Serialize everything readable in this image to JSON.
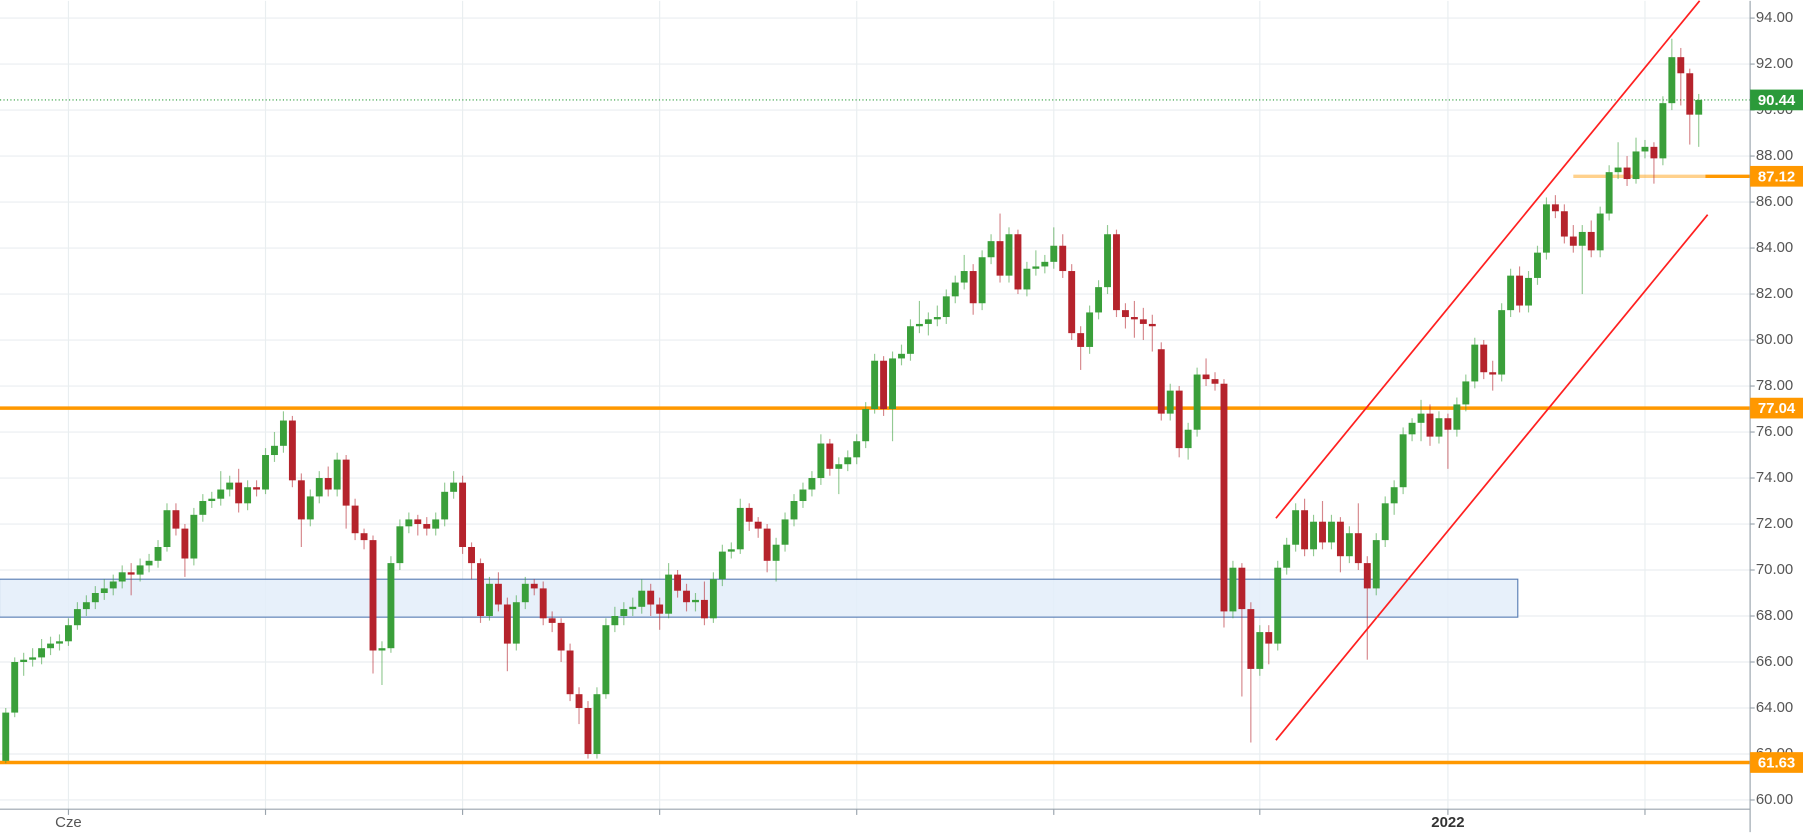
{
  "chart_data": {
    "type": "candlestick",
    "categories": [
      null,
      null,
      null,
      null,
      null,
      null,
      null,
      "Cze",
      null,
      null,
      null,
      null,
      null,
      null,
      null,
      null,
      null,
      null,
      null,
      null,
      null,
      null,
      null,
      null,
      null,
      null,
      null,
      null,
      null,
      null,
      null,
      null,
      null,
      null,
      null,
      null,
      null,
      null,
      null,
      null,
      null,
      null,
      null,
      null,
      null,
      null,
      null,
      null,
      null,
      null,
      null,
      null,
      null,
      null,
      null,
      null,
      null,
      null,
      null,
      null,
      null,
      null,
      null,
      null,
      null,
      null,
      null,
      null,
      null,
      null,
      null,
      null,
      null,
      null,
      null,
      null,
      null,
      null,
      null,
      null,
      null,
      null,
      null,
      null,
      null,
      null,
      null,
      null,
      null,
      null,
      null,
      null,
      null,
      null,
      null,
      null,
      null,
      null,
      null,
      null,
      null,
      null,
      null,
      null,
      null,
      null,
      null,
      null,
      null,
      null,
      null,
      null,
      null,
      null,
      null,
      null,
      null,
      null,
      null,
      null,
      null,
      null,
      null,
      null,
      null,
      null,
      null,
      null,
      null,
      null,
      null,
      null,
      null,
      null,
      null,
      null,
      null,
      null,
      null,
      null,
      null,
      null,
      null,
      null,
      null,
      null,
      null,
      null,
      null,
      null,
      null,
      null,
      null,
      null,
      null,
      null,
      null,
      null,
      null,
      null,
      null,
      "2022",
      null,
      null,
      null,
      null,
      null,
      null,
      null,
      null,
      null,
      null,
      null,
      null,
      null,
      null,
      null,
      null,
      null,
      null,
      null,
      null,
      null,
      null,
      null,
      null,
      null,
      null,
      null,
      null
    ],
    "candles": [
      [
        61.7,
        64.0,
        61.6,
        63.8
      ],
      [
        63.8,
        66.2,
        63.6,
        66.0
      ],
      [
        66.0,
        66.4,
        65.4,
        66.1
      ],
      [
        66.1,
        66.6,
        65.8,
        66.2
      ],
      [
        66.2,
        67.0,
        65.9,
        66.6
      ],
      [
        66.6,
        67.1,
        66.3,
        66.8
      ],
      [
        66.8,
        67.2,
        66.5,
        66.9
      ],
      [
        66.9,
        67.9,
        66.7,
        67.6
      ],
      [
        67.6,
        68.6,
        67.4,
        68.3
      ],
      [
        68.3,
        68.9,
        68.0,
        68.6
      ],
      [
        68.6,
        69.3,
        68.3,
        69.0
      ],
      [
        69.0,
        69.6,
        68.7,
        69.2
      ],
      [
        69.2,
        69.8,
        68.9,
        69.5
      ],
      [
        69.5,
        70.2,
        69.2,
        69.9
      ],
      [
        69.9,
        70.3,
        68.9,
        69.8
      ],
      [
        69.8,
        70.5,
        69.5,
        70.2
      ],
      [
        70.2,
        70.7,
        69.9,
        70.4
      ],
      [
        70.4,
        71.3,
        70.1,
        71.0
      ],
      [
        71.0,
        72.9,
        70.8,
        72.6
      ],
      [
        72.6,
        72.9,
        71.5,
        71.8
      ],
      [
        71.8,
        72.0,
        69.7,
        70.5
      ],
      [
        70.5,
        72.7,
        70.2,
        72.4
      ],
      [
        72.4,
        73.3,
        72.1,
        73.0
      ],
      [
        73.0,
        73.4,
        72.7,
        73.1
      ],
      [
        73.1,
        74.3,
        72.8,
        73.5
      ],
      [
        73.5,
        74.1,
        73.2,
        73.8
      ],
      [
        73.8,
        74.4,
        72.5,
        72.9
      ],
      [
        72.9,
        73.9,
        72.6,
        73.6
      ],
      [
        73.6,
        73.9,
        73.2,
        73.5
      ],
      [
        73.5,
        75.3,
        73.3,
        75.0
      ],
      [
        75.0,
        76.0,
        74.7,
        75.4
      ],
      [
        75.4,
        76.9,
        75.1,
        76.5
      ],
      [
        76.5,
        76.7,
        73.6,
        73.9
      ],
      [
        73.9,
        74.2,
        71.0,
        72.2
      ],
      [
        72.2,
        73.5,
        71.9,
        73.2
      ],
      [
        73.2,
        74.3,
        72.9,
        74.0
      ],
      [
        74.0,
        74.5,
        73.2,
        73.5
      ],
      [
        73.5,
        75.1,
        73.2,
        74.8
      ],
      [
        74.8,
        75.0,
        71.8,
        72.8
      ],
      [
        72.8,
        73.1,
        71.3,
        71.6
      ],
      [
        71.6,
        71.8,
        70.9,
        71.3
      ],
      [
        71.3,
        71.5,
        65.5,
        66.5
      ],
      [
        66.5,
        66.9,
        65.0,
        66.6
      ],
      [
        66.6,
        70.6,
        66.4,
        70.3
      ],
      [
        70.3,
        72.2,
        70.0,
        71.9
      ],
      [
        71.9,
        72.5,
        71.6,
        72.2
      ],
      [
        72.2,
        72.4,
        71.5,
        72.0
      ],
      [
        72.0,
        72.3,
        71.5,
        71.8
      ],
      [
        71.8,
        72.5,
        71.5,
        72.2
      ],
      [
        72.2,
        73.8,
        71.9,
        73.4
      ],
      [
        73.4,
        74.3,
        73.1,
        73.8
      ],
      [
        73.8,
        74.1,
        70.7,
        71.0
      ],
      [
        71.0,
        71.2,
        69.6,
        70.3
      ],
      [
        70.3,
        70.5,
        67.7,
        68.0
      ],
      [
        68.0,
        69.7,
        67.8,
        69.4
      ],
      [
        69.4,
        69.9,
        68.2,
        68.5
      ],
      [
        68.5,
        68.8,
        65.6,
        66.8
      ],
      [
        66.8,
        68.9,
        66.5,
        68.6
      ],
      [
        68.6,
        69.7,
        68.3,
        69.4
      ],
      [
        69.4,
        69.6,
        68.9,
        69.2
      ],
      [
        69.2,
        69.5,
        67.6,
        67.9
      ],
      [
        67.9,
        68.2,
        67.3,
        67.7
      ],
      [
        67.7,
        67.9,
        66.0,
        66.5
      ],
      [
        66.5,
        66.8,
        64.3,
        64.6
      ],
      [
        64.6,
        64.9,
        63.3,
        64.0
      ],
      [
        64.0,
        64.3,
        61.8,
        62.0
      ],
      [
        62.0,
        64.9,
        61.8,
        64.6
      ],
      [
        64.6,
        67.9,
        64.4,
        67.6
      ],
      [
        67.6,
        68.4,
        67.3,
        68.0
      ],
      [
        68.0,
        68.6,
        67.6,
        68.3
      ],
      [
        68.3,
        68.8,
        68.0,
        68.4
      ],
      [
        68.4,
        69.6,
        68.1,
        69.1
      ],
      [
        69.1,
        69.4,
        68.0,
        68.5
      ],
      [
        68.5,
        68.8,
        67.4,
        68.1
      ],
      [
        68.1,
        70.3,
        67.9,
        69.8
      ],
      [
        69.8,
        70.0,
        68.8,
        69.1
      ],
      [
        69.1,
        69.4,
        68.2,
        68.6
      ],
      [
        68.6,
        69.0,
        68.2,
        68.7
      ],
      [
        68.7,
        69.5,
        67.6,
        67.9
      ],
      [
        67.9,
        69.9,
        67.7,
        69.6
      ],
      [
        69.6,
        71.1,
        69.3,
        70.8
      ],
      [
        70.8,
        71.2,
        70.5,
        70.9
      ],
      [
        70.9,
        73.1,
        70.7,
        72.7
      ],
      [
        72.7,
        72.9,
        71.7,
        72.1
      ],
      [
        72.1,
        72.3,
        71.4,
        71.8
      ],
      [
        71.8,
        72.0,
        69.9,
        70.4
      ],
      [
        70.4,
        71.4,
        69.5,
        71.1
      ],
      [
        71.1,
        72.5,
        70.8,
        72.2
      ],
      [
        72.2,
        73.3,
        71.9,
        73.0
      ],
      [
        73.0,
        73.8,
        72.7,
        73.5
      ],
      [
        73.5,
        74.3,
        73.2,
        74.0
      ],
      [
        74.0,
        75.9,
        73.7,
        75.5
      ],
      [
        75.5,
        75.7,
        74.1,
        74.4
      ],
      [
        74.4,
        74.9,
        73.3,
        74.6
      ],
      [
        74.6,
        75.2,
        74.3,
        74.9
      ],
      [
        74.9,
        75.9,
        74.6,
        75.6
      ],
      [
        75.6,
        77.3,
        75.3,
        77.0
      ],
      [
        77.0,
        79.4,
        76.8,
        79.1
      ],
      [
        79.1,
        79.3,
        76.7,
        77.0
      ],
      [
        77.0,
        79.5,
        75.6,
        79.2
      ],
      [
        79.2,
        79.8,
        78.9,
        79.4
      ],
      [
        79.4,
        80.9,
        79.1,
        80.6
      ],
      [
        80.6,
        81.7,
        80.3,
        80.7
      ],
      [
        80.7,
        81.2,
        80.2,
        80.9
      ],
      [
        80.9,
        81.5,
        80.6,
        81.0
      ],
      [
        81.0,
        82.2,
        80.7,
        81.9
      ],
      [
        81.9,
        82.8,
        81.6,
        82.5
      ],
      [
        82.5,
        83.7,
        82.2,
        83.0
      ],
      [
        83.0,
        83.3,
        81.1,
        81.6
      ],
      [
        81.6,
        83.9,
        81.3,
        83.6
      ],
      [
        83.6,
        84.6,
        83.3,
        84.3
      ],
      [
        84.3,
        85.5,
        82.5,
        82.8
      ],
      [
        82.8,
        84.9,
        82.5,
        84.6
      ],
      [
        84.6,
        84.8,
        82.0,
        82.2
      ],
      [
        82.2,
        83.4,
        81.9,
        83.1
      ],
      [
        83.1,
        83.9,
        82.8,
        83.2
      ],
      [
        83.2,
        83.7,
        82.9,
        83.4
      ],
      [
        83.4,
        84.9,
        83.1,
        84.1
      ],
      [
        84.1,
        84.6,
        82.7,
        83.0
      ],
      [
        83.0,
        83.3,
        80.0,
        80.3
      ],
      [
        80.3,
        80.6,
        78.7,
        79.7
      ],
      [
        79.7,
        81.5,
        79.4,
        81.2
      ],
      [
        81.2,
        82.6,
        80.9,
        82.3
      ],
      [
        82.3,
        85.0,
        82.0,
        84.6
      ],
      [
        84.6,
        84.8,
        81.0,
        81.3
      ],
      [
        81.3,
        81.6,
        80.5,
        81.0
      ],
      [
        81.0,
        81.7,
        80.1,
        80.9
      ],
      [
        80.9,
        81.4,
        80.0,
        80.7
      ],
      [
        80.7,
        81.1,
        79.5,
        80.6
      ],
      [
        79.6,
        79.9,
        76.5,
        76.8
      ],
      [
        76.8,
        78.1,
        76.5,
        77.8
      ],
      [
        77.8,
        78.0,
        74.9,
        75.3
      ],
      [
        75.3,
        76.4,
        74.8,
        76.1
      ],
      [
        76.1,
        78.8,
        75.8,
        78.5
      ],
      [
        78.5,
        79.2,
        78.0,
        78.3
      ],
      [
        78.3,
        78.6,
        77.8,
        78.1
      ],
      [
        78.1,
        78.3,
        67.5,
        68.2
      ],
      [
        68.2,
        70.4,
        67.9,
        70.1
      ],
      [
        70.1,
        70.3,
        64.5,
        68.3
      ],
      [
        68.3,
        68.6,
        62.5,
        65.7
      ],
      [
        65.7,
        67.6,
        65.4,
        67.3
      ],
      [
        67.3,
        67.6,
        65.9,
        66.8
      ],
      [
        66.8,
        70.4,
        66.5,
        70.1
      ],
      [
        70.1,
        71.4,
        69.8,
        71.1
      ],
      [
        71.1,
        72.9,
        70.8,
        72.6
      ],
      [
        72.6,
        73.1,
        70.6,
        70.9
      ],
      [
        70.9,
        72.4,
        70.6,
        72.1
      ],
      [
        72.1,
        73.0,
        70.9,
        71.2
      ],
      [
        71.2,
        72.4,
        70.9,
        72.1
      ],
      [
        72.1,
        72.3,
        69.9,
        70.6
      ],
      [
        70.6,
        71.9,
        70.3,
        71.6
      ],
      [
        71.6,
        72.9,
        70.0,
        70.3
      ],
      [
        70.3,
        70.6,
        66.1,
        69.2
      ],
      [
        69.2,
        71.6,
        68.9,
        71.3
      ],
      [
        71.3,
        73.2,
        71.0,
        72.9
      ],
      [
        72.9,
        73.9,
        72.4,
        73.6
      ],
      [
        73.6,
        76.2,
        73.3,
        75.9
      ],
      [
        75.9,
        76.6,
        75.6,
        76.4
      ],
      [
        76.4,
        77.4,
        75.6,
        76.8
      ],
      [
        76.8,
        77.2,
        75.4,
        75.8
      ],
      [
        75.8,
        76.9,
        75.5,
        76.6
      ],
      [
        76.6,
        76.8,
        74.4,
        76.1
      ],
      [
        76.1,
        77.5,
        75.8,
        77.2
      ],
      [
        77.2,
        78.5,
        76.9,
        78.2
      ],
      [
        78.2,
        80.1,
        77.9,
        79.8
      ],
      [
        79.8,
        80.0,
        78.3,
        78.6
      ],
      [
        78.6,
        79.1,
        77.8,
        78.5
      ],
      [
        78.5,
        81.6,
        78.2,
        81.3
      ],
      [
        81.3,
        83.1,
        81.0,
        82.8
      ],
      [
        82.8,
        83.2,
        81.2,
        81.5
      ],
      [
        81.5,
        83.0,
        81.2,
        82.7
      ],
      [
        82.7,
        84.1,
        82.4,
        83.8
      ],
      [
        83.8,
        86.2,
        83.5,
        85.9
      ],
      [
        85.9,
        86.3,
        85.3,
        85.6
      ],
      [
        85.6,
        85.9,
        84.2,
        84.5
      ],
      [
        84.5,
        85.0,
        83.8,
        84.1
      ],
      [
        84.1,
        85.0,
        82.0,
        84.7
      ],
      [
        84.7,
        85.2,
        83.6,
        83.9
      ],
      [
        83.9,
        85.8,
        83.6,
        85.5
      ],
      [
        85.5,
        87.6,
        85.2,
        87.3
      ],
      [
        87.3,
        88.6,
        87.0,
        87.5
      ],
      [
        87.5,
        88.0,
        86.7,
        87.0
      ],
      [
        87.0,
        88.8,
        86.8,
        88.2
      ],
      [
        88.2,
        88.7,
        87.9,
        88.4
      ],
      [
        88.4,
        88.6,
        86.8,
        87.9
      ],
      [
        87.9,
        90.6,
        87.6,
        90.3
      ],
      [
        90.3,
        93.1,
        90.0,
        92.3
      ],
      [
        92.3,
        92.7,
        90.2,
        91.6
      ],
      [
        91.6,
        91.8,
        88.5,
        89.8
      ],
      [
        89.8,
        90.7,
        88.4,
        90.44
      ]
    ],
    "up_color": "#3a9f3a",
    "down_color": "#b5232c",
    "ylim": [
      59.6,
      94.75
    ],
    "yticks": [
      {
        "value": 60,
        "label": "60.00"
      },
      {
        "value": 62,
        "label": "62.00"
      },
      {
        "value": 64,
        "label": "64.00"
      },
      {
        "value": 66,
        "label": "66.00"
      },
      {
        "value": 68,
        "label": "68.00"
      },
      {
        "value": 70,
        "label": "70.00"
      },
      {
        "value": 72,
        "label": "72.00"
      },
      {
        "value": 74,
        "label": "74.00"
      },
      {
        "value": 76,
        "label": "76.00"
      },
      {
        "value": 78,
        "label": "78.00"
      },
      {
        "value": 80,
        "label": "80.00"
      },
      {
        "value": 82,
        "label": "82.00"
      },
      {
        "value": 84,
        "label": "84.00"
      },
      {
        "value": 86,
        "label": "86.00"
      },
      {
        "value": 88,
        "label": "88.00"
      },
      {
        "value": 90,
        "label": "90.00"
      },
      {
        "value": 92,
        "label": "92.00"
      },
      {
        "value": 94,
        "label": "94.00"
      }
    ],
    "grid": true,
    "levels": [
      {
        "price": 77.04
      },
      {
        "price": 61.63
      },
      {
        "price": 87.12,
        "from": 175
      }
    ],
    "level_color": "#ff9800",
    "last_price_color": "#2b9a3a",
    "zone": {
      "x": [
        -0.7,
        168.8
      ],
      "y": [
        67.95,
        69.6
      ],
      "fill": "#e3edf9",
      "stroke": "#5b7fb5"
    },
    "channel_color": "#ff2020",
    "channel": [
      {
        "x": [
          141.8,
          189.1
        ],
        "y": [
          72.25,
          94.75
        ]
      },
      {
        "x": [
          141.8,
          190.0
        ],
        "y": [
          62.6,
          85.45
        ]
      }
    ]
  }
}
